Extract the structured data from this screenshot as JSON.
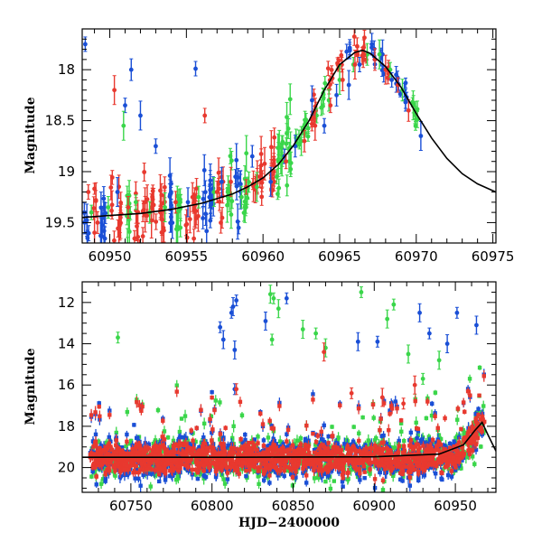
{
  "figure": {
    "xlabel": "HJD−2400000",
    "ylabel": "Magnitude"
  },
  "chart_data": [
    {
      "type": "scatter",
      "panel": "top",
      "xlabel": "",
      "ylabel": "Magnitude",
      "xlim": [
        60948.2,
        60975.2
      ],
      "ylim": [
        19.7,
        17.6
      ],
      "y_inverted": true,
      "xticks": [
        60950,
        60955,
        60960,
        60965,
        60970,
        60975
      ],
      "xtick_labels": [
        "60950",
        "60955",
        "60960",
        "60965",
        "60970",
        "60975"
      ],
      "yticks": [
        18,
        18.5,
        19,
        19.5
      ],
      "ytick_labels": [
        "18",
        "18.5",
        "19",
        "19.5"
      ],
      "model_curve": {
        "name": "model",
        "color": "#000000",
        "x": [
          60948.2,
          60950,
          60952,
          60954,
          60956,
          60958,
          60959,
          60960,
          60961,
          60962,
          60963,
          60964,
          60965,
          60966,
          60966.5,
          60967,
          60968,
          60969,
          60970,
          60971,
          60972,
          60973,
          60974,
          60975.2
        ],
        "y": [
          19.45,
          19.43,
          19.41,
          19.37,
          19.31,
          19.22,
          19.15,
          19.06,
          18.93,
          18.74,
          18.5,
          18.2,
          17.95,
          17.83,
          17.81,
          17.84,
          17.97,
          18.17,
          18.43,
          18.67,
          18.87,
          19.02,
          19.12,
          19.2
        ]
      },
      "series": [
        {
          "name": "blue",
          "color": "#1a4fd6",
          "x": [
            60948.4,
            60949.5,
            60950.5,
            60951.0,
            60951.4,
            60952.0,
            60953.0,
            60954.0,
            60955.1,
            60955.6,
            60956.5,
            60957.3,
            60958.2,
            60959.3,
            60960.5,
            60961.4,
            60962.1,
            60963.2,
            60964.0,
            60964.8,
            60965.6,
            60966.3,
            60967.1,
            60967.8,
            60968.4,
            60969.3,
            60970.3
          ],
          "y": [
            17.75,
            19.45,
            19.2,
            18.35,
            18.0,
            18.45,
            18.75,
            19.2,
            19.3,
            17.99,
            19.25,
            19.1,
            19.05,
            18.85,
            19.1,
            18.85,
            18.75,
            18.3,
            18.55,
            18.25,
            18.15,
            17.95,
            17.75,
            17.85,
            18.1,
            18.3,
            18.65
          ]
        },
        {
          "name": "green",
          "color": "#3ad64a",
          "x": [
            60948.8,
            60949.9,
            60950.9,
            60951.7,
            60952.6,
            60953.6,
            60954.6,
            60955.8,
            60956.8,
            60957.7,
            60958.6,
            60959.6,
            60960.9,
            60961.7,
            60962.5,
            60963.5,
            60964.3,
            60965.0,
            60965.9,
            60966.8,
            60967.6,
            60968.3,
            60969.1,
            60969.8
          ],
          "y": [
            19.4,
            19.35,
            18.55,
            19.3,
            19.4,
            19.35,
            19.3,
            19.25,
            19.2,
            19.2,
            19.25,
            19.15,
            19.05,
            18.9,
            18.7,
            18.45,
            18.3,
            18.1,
            17.95,
            17.85,
            17.85,
            18.0,
            18.2,
            18.35
          ]
        },
        {
          "name": "red",
          "color": "#e8392f",
          "x": [
            60948.6,
            60949.2,
            60950.3,
            60950.7,
            60951.2,
            60952.3,
            60953.3,
            60954.3,
            60955.4,
            60956.2,
            60957.0,
            60957.9,
            60958.9,
            60959.8,
            60960.7,
            60961.5,
            60962.7,
            60963.4,
            60964.4,
            60965.2,
            60966.0,
            60966.6,
            60967.3,
            60968.0,
            60968.8,
            60969.5
          ],
          "y": [
            19.2,
            19.5,
            18.2,
            19.45,
            19.35,
            19.3,
            19.4,
            19.3,
            19.25,
            18.45,
            19.2,
            19.1,
            19.15,
            19.05,
            19.0,
            18.9,
            18.7,
            18.55,
            18.35,
            18.1,
            17.95,
            17.85,
            17.9,
            18.0,
            18.15,
            18.4
          ]
        }
      ]
    },
    {
      "type": "scatter",
      "panel": "bottom",
      "xlabel": "HJD−2400000",
      "ylabel": "Magnitude",
      "xlim": [
        60720,
        60975
      ],
      "ylim": [
        21.2,
        11.0
      ],
      "y_inverted": true,
      "xticks": [
        60750,
        60800,
        60850,
        60900,
        60950
      ],
      "xtick_labels": [
        "60750",
        "60800",
        "60850",
        "60900",
        "60950"
      ],
      "yticks": [
        12,
        14,
        16,
        18,
        20
      ],
      "ytick_labels": [
        "12",
        "14",
        "16",
        "18",
        "20"
      ],
      "model_curve": {
        "name": "model",
        "color": "#000000",
        "x": [
          60720,
          60800,
          60900,
          60940,
          60955,
          60962,
          60966.5,
          60970,
          60975
        ],
        "y": [
          19.5,
          19.5,
          19.48,
          19.35,
          18.9,
          18.2,
          17.81,
          18.4,
          19.2
        ]
      },
      "baseline_band": {
        "x_start": 60725,
        "x_end": 60968,
        "y_center": 19.55,
        "description": "dense band of observations"
      },
      "series": [
        {
          "name": "blue",
          "color": "#1a4fd6",
          "x": [
            60815,
            60813,
            60812,
            60814,
            60805,
            60807,
            60814,
            60833,
            60846,
            60890,
            60902,
            60928,
            60934,
            60945,
            60951,
            60963
          ],
          "y": [
            11.9,
            12.2,
            12.5,
            14.3,
            13.2,
            13.8,
            16.2,
            12.9,
            11.8,
            13.9,
            13.9,
            12.5,
            13.5,
            14.0,
            12.5,
            13.1
          ]
        },
        {
          "name": "green",
          "color": "#3ad64a",
          "x": [
            60742,
            60836,
            60838,
            60841,
            60837,
            60856,
            60864,
            60870,
            60892,
            60908,
            60912,
            60921,
            60930,
            60940
          ],
          "y": [
            13.7,
            11.6,
            11.8,
            12.3,
            13.8,
            13.3,
            13.5,
            14.2,
            11.5,
            12.8,
            12.1,
            14.5,
            15.7,
            14.8
          ]
        },
        {
          "name": "red",
          "color": "#e8392f",
          "x": [
            60815,
            60869,
            60886,
            60905,
            60918,
            60925
          ],
          "y": [
            16.2,
            14.4,
            16.4,
            16.6,
            16.9,
            16.0
          ]
        }
      ]
    }
  ]
}
